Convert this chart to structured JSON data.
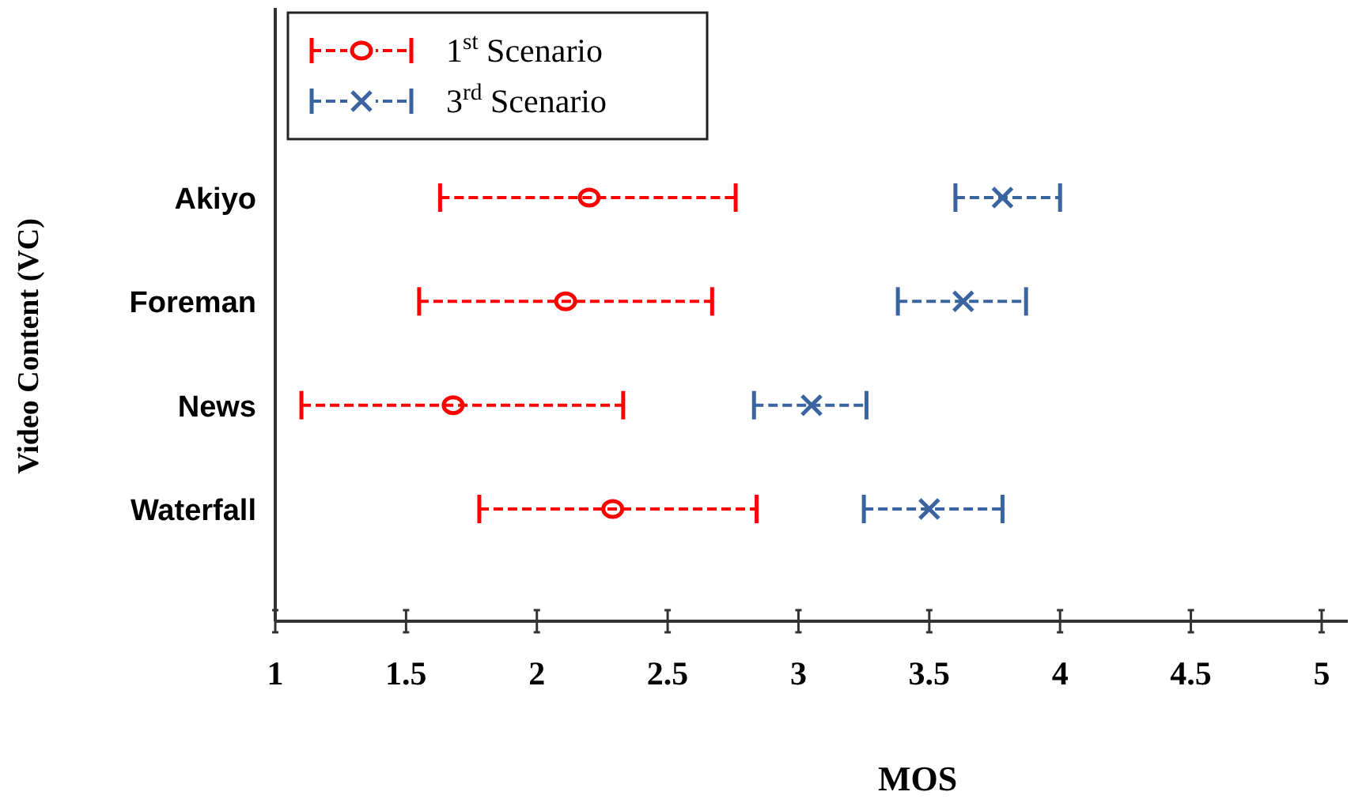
{
  "chart_data": {
    "type": "scatter",
    "orientation": "horizontal",
    "xlabel": "MOS",
    "ylabel": "Video Content (VC)",
    "categories": [
      "Akiyo",
      "Foreman",
      "News",
      "Waterfall"
    ],
    "xlim": [
      1,
      5.1
    ],
    "xticks": [
      1,
      1.5,
      2,
      2.5,
      3,
      3.5,
      4,
      4.5,
      5
    ],
    "legend": "top left",
    "line_style": "dashed",
    "grid": false,
    "series": [
      {
        "name": "1$^{st}$ Scenario",
        "color": "#ff0000",
        "marker": "circle",
        "values": [
          2.2,
          2.11,
          1.68,
          2.29
        ],
        "errors": [
          [
            1.63,
            2.76
          ],
          [
            1.55,
            2.67
          ],
          [
            1.1,
            2.33
          ],
          [
            1.78,
            2.84
          ]
        ]
      },
      {
        "name": "3$^{rd}$ Scenario",
        "color": "#3a64a0",
        "marker": "cross",
        "values": [
          3.78,
          3.63,
          3.05,
          3.5
        ],
        "errors": [
          [
            3.6,
            4.0
          ],
          [
            3.38,
            3.87
          ],
          [
            2.83,
            3.26
          ],
          [
            3.25,
            3.78
          ]
        ]
      }
    ]
  }
}
